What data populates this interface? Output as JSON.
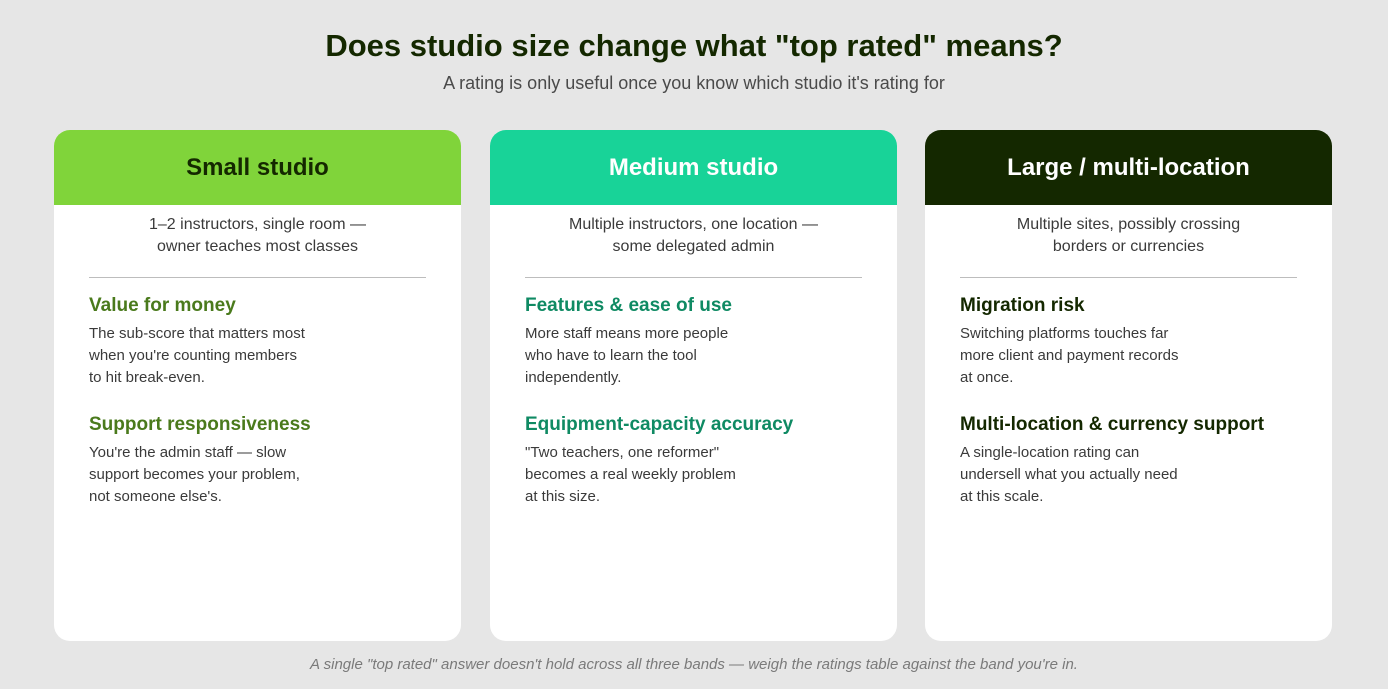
{
  "title": "Does studio size change what \"top rated\" means?",
  "subtitle": "A rating is only useful once you know which studio it's rating for",
  "cards": [
    {
      "header": "Small studio",
      "header_bg": "#80d43a",
      "header_color": "#142800",
      "accent": "#4a7a1c",
      "description_lines": [
        "1–2 instructors, single room —",
        "owner teaches most classes"
      ],
      "criteria": [
        {
          "title": "Value for money",
          "body_lines": [
            "The sub-score that matters most",
            "when you're counting members",
            "to hit break-even."
          ]
        },
        {
          "title": "Support responsiveness",
          "body_lines": [
            "You're the admin staff — slow",
            "support becomes your problem,",
            "not someone else's."
          ]
        }
      ]
    },
    {
      "header": "Medium studio",
      "header_bg": "#18d398",
      "header_color": "#ffffff",
      "accent": "#0f8a63",
      "description_lines": [
        "Multiple instructors, one location —",
        "some delegated admin"
      ],
      "criteria": [
        {
          "title": "Features & ease of use",
          "body_lines": [
            "More staff means more people",
            "who have to learn the tool",
            "independently."
          ]
        },
        {
          "title": "Equipment-capacity accuracy",
          "body_lines": [
            "\"Two teachers, one reformer\"",
            "becomes a real weekly problem",
            "at this size."
          ]
        }
      ]
    },
    {
      "header": "Large / multi-location",
      "header_bg": "#142800",
      "header_color": "#ffffff",
      "accent": "#142800",
      "description_lines": [
        "Multiple sites, possibly crossing",
        "borders or currencies"
      ],
      "criteria": [
        {
          "title": "Migration risk",
          "body_lines": [
            "Switching platforms touches far",
            "more client and payment records",
            "at once."
          ]
        },
        {
          "title": "Multi-location & currency support",
          "body_lines": [
            "A single-location rating can",
            "undersell what you actually need",
            "at this scale."
          ]
        }
      ]
    }
  ],
  "footer": "A single \"top rated\" answer doesn't hold across all three bands — weigh the ratings table against the band you're in."
}
